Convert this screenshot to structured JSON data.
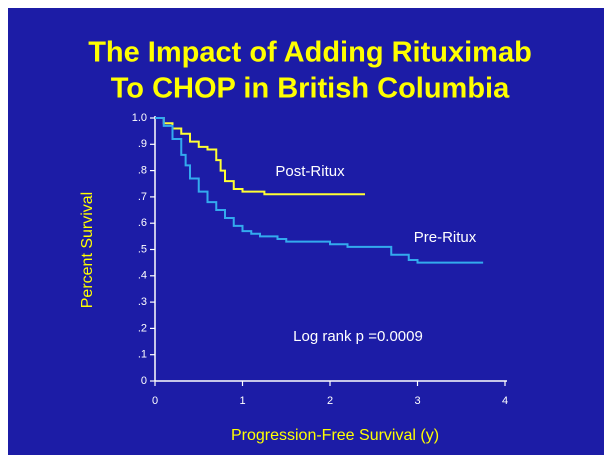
{
  "chart_data": {
    "type": "step-line",
    "title": [
      "The Impact of Adding Rituximab",
      "To CHOP in British Columbia"
    ],
    "x_label": "Progression-Free Survival (y)",
    "y_label": "Percent Survival",
    "annotation": "Log rank p =0.0009",
    "xlim": [
      0,
      4
    ],
    "ylim": [
      0,
      1
    ],
    "xticks": [
      0,
      1,
      2,
      3,
      4
    ],
    "yticks": [
      {
        "value": 0,
        "label": "0"
      },
      {
        "value": 0.1,
        "label": ".1"
      },
      {
        "value": 0.2,
        "label": ".2"
      },
      {
        "value": 0.3,
        "label": ".3"
      },
      {
        "value": 0.4,
        "label": ".4"
      },
      {
        "value": 0.5,
        "label": ".5"
      },
      {
        "value": 0.6,
        "label": ".6"
      },
      {
        "value": 0.7,
        "label": ".7"
      },
      {
        "value": 0.8,
        "label": ".8"
      },
      {
        "value": 0.9,
        "label": ".9"
      },
      {
        "value": 1,
        "label": "1.0"
      }
    ],
    "grid": false,
    "series": [
      {
        "name": "Post-Ritux",
        "color": "#ffff33",
        "x": [
          0,
          0.1,
          0.2,
          0.3,
          0.4,
          0.5,
          0.6,
          0.7,
          0.75,
          0.8,
          0.9,
          1.0,
          1.25,
          2.4
        ],
        "values": [
          1.0,
          0.98,
          0.96,
          0.94,
          0.91,
          0.89,
          0.88,
          0.84,
          0.8,
          0.76,
          0.73,
          0.72,
          0.71,
          0.71
        ]
      },
      {
        "name": "Pre-Ritux",
        "color": "#33aaee",
        "x": [
          0,
          0.1,
          0.2,
          0.3,
          0.35,
          0.4,
          0.5,
          0.6,
          0.7,
          0.8,
          0.9,
          1.0,
          1.1,
          1.2,
          1.4,
          1.5,
          2.0,
          2.2,
          2.7,
          2.9,
          3.0,
          3.75
        ],
        "values": [
          1.0,
          0.97,
          0.92,
          0.86,
          0.82,
          0.77,
          0.72,
          0.68,
          0.65,
          0.62,
          0.59,
          0.57,
          0.56,
          0.55,
          0.54,
          0.53,
          0.52,
          0.51,
          0.48,
          0.46,
          0.45,
          0.45
        ]
      }
    ]
  }
}
